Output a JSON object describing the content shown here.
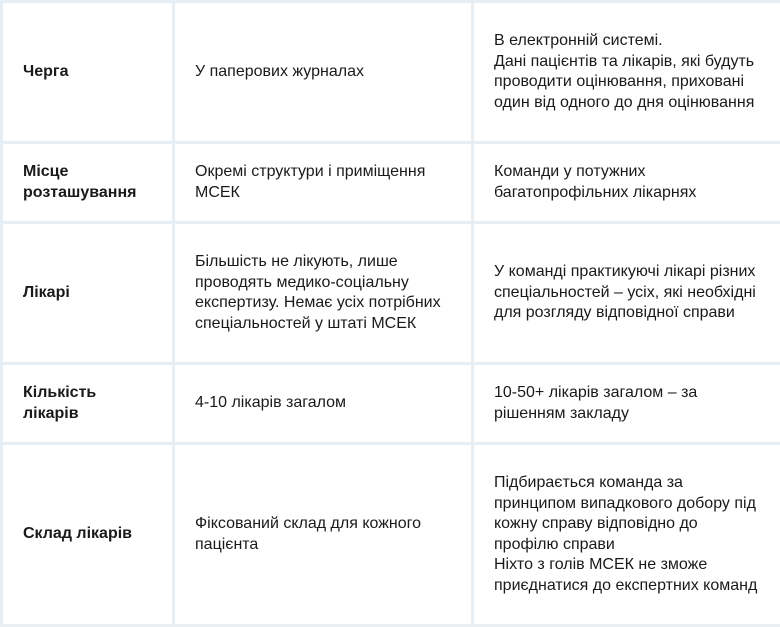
{
  "rows": [
    {
      "label": "Черга",
      "old": "У паперових журналах",
      "new": "В електронній системі.\nДані пацієнтів та лікарів, які будуть проводити оцінювання, приховані один від одного до дня оцінювання"
    },
    {
      "label": "Місце розташування",
      "old": "Окремі структури і приміщення МСЕК",
      "new": "Команди у потужних багатопрофільних лікарнях"
    },
    {
      "label": "Лікарі",
      "old": "Більшість не лікують, лише проводять медико-соціальну експертизу. Немає усіх потрібних спеціальностей у штаті МСЕК",
      "new": "У команді практикуючі лікарі різних спеціальностей – усіх, які необхідні для розгляду відповідної справи"
    },
    {
      "label": "Кількість лікарів",
      "old": "4-10 лікарів загалом",
      "new": "10-50+ лікарів загалом – за рішенням закладу"
    },
    {
      "label": "Склад лікарів",
      "old": "Фіксований склад для кожного пацієнта",
      "new": "Підбирається команда за принципом випадкового добору під кожну справу відповідно до профілю справи\nНіхто з голів МСЕК не зможе приєднатися до експертних команд"
    }
  ]
}
